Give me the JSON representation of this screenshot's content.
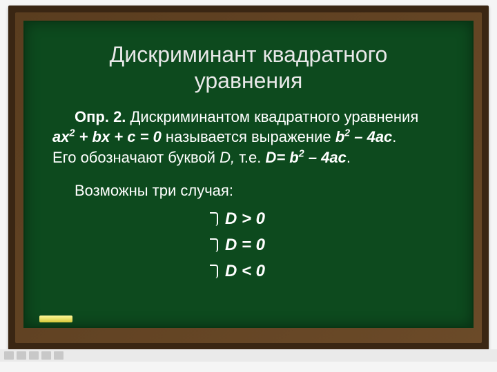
{
  "styling": {
    "slide_width": 720,
    "slide_height": 540,
    "board_frame_color": "#3a2613",
    "board_inner_gradient": [
      "#5a3d1f",
      "#6b4a28"
    ],
    "board_surface_color": "#0d4a1e",
    "chalk_gradient": [
      "#fff89a",
      "#d6c93a"
    ],
    "text_color": "#ffffff",
    "title_fontsize": 32,
    "body_fontsize": 22,
    "case_fontsize": 24,
    "font_family": "Arial"
  },
  "title": "Дискриминант квадратного уравнения",
  "definition": {
    "label": "Опр. 2.",
    "part1": " Дискриминантом квадратного уравнения ",
    "eq1_a": "ах",
    "eq1_exp": "2",
    "eq1_b": " + bх + с = 0",
    "part2": " называется выражение ",
    "expr_b": "b",
    "expr_exp": "2",
    "expr_rest": " – 4ac",
    "part3": ".",
    "line2a": "Его обозначают буквой ",
    "line2_d": "D, ",
    "line2b": "т.е. ",
    "line2_eq_d": "D= b",
    "line2_eq_exp": "2",
    "line2_eq_rest": " – 4ac",
    "line2_end": "."
  },
  "cases_intro": "Возможны три случая:",
  "cases": {
    "c1": "D  >  0",
    "c2": "D  =  0",
    "c3": "D  <  0"
  }
}
